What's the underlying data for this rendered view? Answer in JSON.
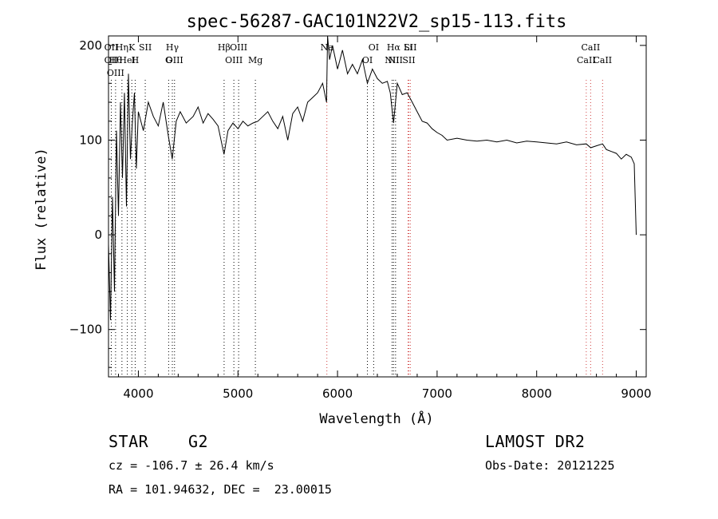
{
  "chart_data": {
    "type": "line",
    "title": "spec-56287-GAC101N22V2_sp15-113.fits",
    "xlabel": "Wavelength (Å)",
    "ylabel": "Flux (relative)",
    "xlim": [
      3700,
      9100
    ],
    "ylim": [
      -150,
      210
    ],
    "x_ticks": [
      4000,
      5000,
      6000,
      7000,
      8000,
      9000
    ],
    "y_ticks": [
      -100,
      0,
      100,
      200
    ],
    "grid": false,
    "line_color": "#000000",
    "series": [
      {
        "x": [
          3700,
          3720,
          3740,
          3760,
          3780,
          3800,
          3820,
          3840,
          3860,
          3880,
          3900,
          3920,
          3940,
          3960,
          3980,
          4000,
          4050,
          4100,
          4150,
          4200,
          4250,
          4300,
          4340,
          4380,
          4420,
          4480,
          4550,
          4600,
          4650,
          4700,
          4750,
          4800,
          4860,
          4900,
          4950,
          5000,
          5050,
          5100,
          5150,
          5200,
          5250,
          5300,
          5350,
          5400,
          5450,
          5500,
          5550,
          5600,
          5650,
          5700,
          5750,
          5800,
          5850,
          5890,
          5900,
          5920,
          5950,
          6000,
          6050,
          6100,
          6150,
          6200,
          6250,
          6300,
          6350,
          6400,
          6450,
          6500,
          6530,
          6563,
          6600,
          6650,
          6700,
          6750,
          6800,
          6850,
          6900,
          6950,
          7000,
          7050,
          7100,
          7200,
          7300,
          7400,
          7500,
          7600,
          7700,
          7800,
          7900,
          8000,
          8100,
          8200,
          8300,
          8400,
          8498,
          8542,
          8600,
          8662,
          8700,
          8750,
          8800,
          8850,
          8900,
          8950,
          8980,
          9000
        ],
        "y": [
          -10,
          -90,
          40,
          -60,
          110,
          20,
          140,
          60,
          150,
          30,
          170,
          80,
          120,
          150,
          70,
          130,
          110,
          140,
          125,
          115,
          140,
          105,
          80,
          120,
          130,
          118,
          125,
          135,
          118,
          128,
          122,
          115,
          85,
          110,
          118,
          112,
          120,
          115,
          118,
          120,
          125,
          130,
          120,
          112,
          125,
          100,
          128,
          135,
          120,
          140,
          145,
          150,
          160,
          140,
          210,
          185,
          200,
          175,
          195,
          170,
          180,
          170,
          185,
          160,
          175,
          165,
          160,
          162,
          150,
          118,
          160,
          148,
          150,
          140,
          130,
          120,
          118,
          112,
          108,
          105,
          100,
          102,
          100,
          99,
          100,
          98,
          100,
          97,
          99,
          98,
          97,
          96,
          98,
          95,
          96,
          92,
          94,
          96,
          90,
          88,
          86,
          80,
          85,
          82,
          75,
          0
        ]
      }
    ],
    "line_labels": [
      {
        "lam": 3728,
        "rows": [
          [
            "OII",
            "#000000"
          ],
          [
            "OII",
            "#000000"
          ]
        ]
      },
      {
        "lam": 3771,
        "rows": [
          [
            "H&#952;",
            "#000000"
          ],
          [
            "OIII",
            "#000000"
          ]
        ]
      },
      {
        "lam": 3835,
        "rows": [
          [
            "H&#951;",
            "#000000"
          ]
        ]
      },
      {
        "lam": 3889,
        "rows": [
          [
            "HeI",
            "#000000"
          ]
        ]
      },
      {
        "lam": 3934,
        "rows": [
          [
            "K",
            "#000000"
          ]
        ]
      },
      {
        "lam": 3968,
        "rows": [
          [
            "H",
            "#000000"
          ]
        ]
      },
      {
        "lam": 4069,
        "rows": [
          [
            "SII",
            "#000000"
          ]
        ]
      },
      {
        "lam": 4304,
        "rows": [
          [
            "G",
            "#000000"
          ]
        ]
      },
      {
        "lam": 4341,
        "rows": [
          [
            "H&#947;",
            "#000000"
          ]
        ]
      },
      {
        "lam": 4363,
        "rows": [
          [
            "OIII",
            "#000000"
          ]
        ]
      },
      {
        "lam": 4861,
        "rows": [
          [
            "H&#946;",
            "#000000"
          ]
        ]
      },
      {
        "lam": 4959,
        "rows": [
          [
            "OIII",
            "#000000"
          ]
        ]
      },
      {
        "lam": 5007,
        "rows": [
          [
            "OIII",
            "#000000"
          ]
        ]
      },
      {
        "lam": 5175,
        "rows": [
          [
            "Mg",
            "#000000"
          ]
        ]
      },
      {
        "lam": 5893,
        "rows": [
          [
            "Na",
            "#000000"
          ]
        ]
      },
      {
        "lam": 6300,
        "rows": [
          [
            "OI",
            "#000000"
          ]
        ]
      },
      {
        "lam": 6363,
        "rows": [
          [
            "OI",
            "#000000"
          ]
        ]
      },
      {
        "lam": 6548,
        "rows": [
          [
            "NII",
            "#000000"
          ]
        ]
      },
      {
        "lam": 6563,
        "rows": [
          [
            "H&#945;",
            "#000000"
          ]
        ]
      },
      {
        "lam": 6583,
        "rows": [
          [
            "NII",
            "#000000"
          ]
        ]
      },
      {
        "lam": 6708,
        "rows": [
          [
            "Li",
            "#000000"
          ]
        ]
      },
      {
        "lam": 6716,
        "rows": [
          [
            "SII",
            "#000000"
          ]
        ]
      },
      {
        "lam": 6731,
        "rows": [
          [
            "SII",
            "#000000"
          ]
        ]
      },
      {
        "lam": 8498,
        "rows": [
          [
            "CaII",
            "#000000"
          ]
        ]
      },
      {
        "lam": 8542,
        "rows": [
          [
            "CaII",
            "#000000"
          ]
        ]
      },
      {
        "lam": 8662,
        "rows": [
          [
            "CaII",
            "#000000"
          ]
        ]
      }
    ],
    "line_colors": {
      "3728": "#000000",
      "3771": "#000000",
      "3835": "#000000",
      "3889": "#000000",
      "3934": "#000000",
      "3968": "#000000",
      "4069": "#000000",
      "4304": "#000000",
      "4341": "#000000",
      "4363": "#000000",
      "4861": "#000000",
      "4959": "#000000",
      "5007": "#000000",
      "5175": "#000000",
      "5893": "#d04040",
      "6300": "#000000",
      "6363": "#000000",
      "6548": "#000000",
      "6563": "#000000",
      "6583": "#000000",
      "6708": "#d04040",
      "6716": "#d04040",
      "6731": "#d04040",
      "8498": "#d04040",
      "8542": "#d04040",
      "8662": "#d04040"
    }
  },
  "info": {
    "class_label": "STAR",
    "subclass": "G2",
    "survey": "LAMOST DR2",
    "redshift": "cz = -106.7 ± 26.4 km/s",
    "obs_date": "Obs-Date: 20121225",
    "coords": "RA = 101.94632, DEC =  23.00015"
  }
}
